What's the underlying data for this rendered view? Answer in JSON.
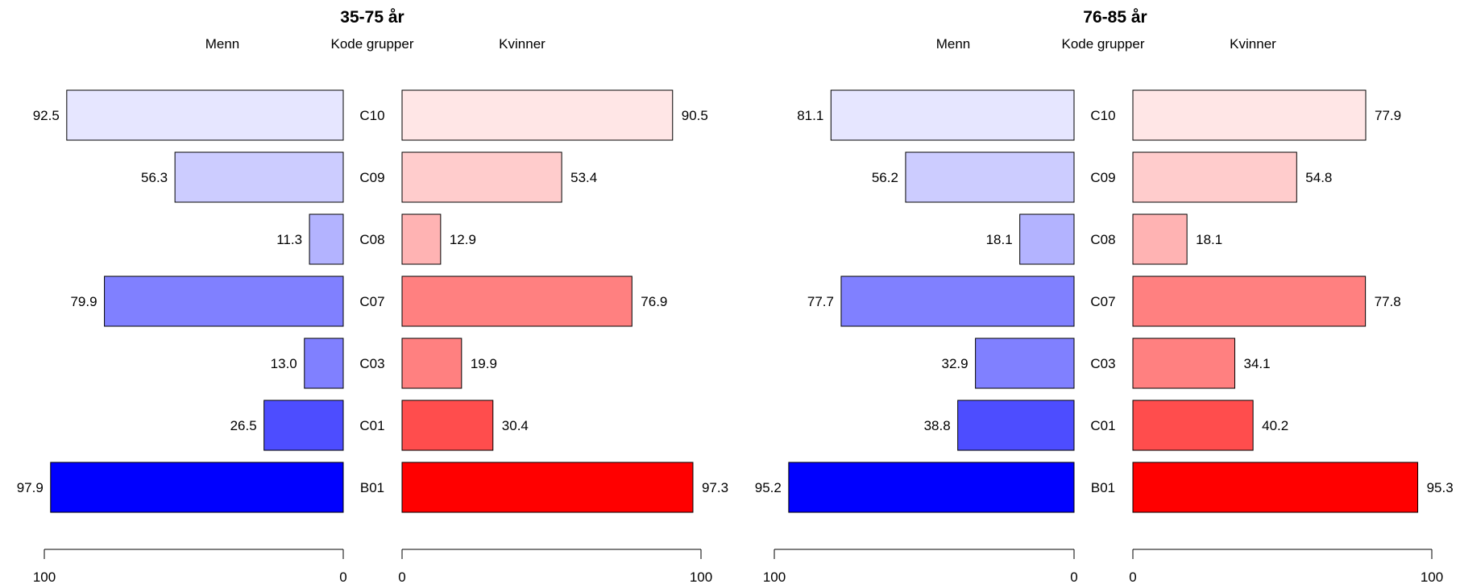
{
  "chart_data": [
    {
      "type": "bar",
      "title": "35-75 år",
      "headers": {
        "left": "Menn",
        "center": "Kode grupper",
        "right": "Kvinner"
      },
      "categories": [
        "C10",
        "C09",
        "C08",
        "C07",
        "C03",
        "C01",
        "B01"
      ],
      "series": [
        {
          "name": "Menn",
          "values": [
            92.5,
            56.3,
            11.3,
            79.9,
            13.0,
            26.5,
            97.9
          ],
          "labels": [
            "92.5",
            "56.3",
            "11.3",
            "79.9",
            "13.0",
            "26.5",
            "97.9"
          ]
        },
        {
          "name": "Kvinner",
          "values": [
            90.5,
            53.4,
            12.9,
            76.9,
            19.9,
            30.4,
            97.3
          ],
          "labels": [
            "90.5",
            "53.4",
            "12.9",
            "76.9",
            "19.9",
            "30.4",
            "97.3"
          ]
        }
      ],
      "xlim": [
        0,
        100
      ],
      "left_axis_ticks": [
        "100",
        "0"
      ],
      "right_axis_ticks": [
        "0",
        "100"
      ]
    },
    {
      "type": "bar",
      "title": "76-85 år",
      "headers": {
        "left": "Menn",
        "center": "Kode grupper",
        "right": "Kvinner"
      },
      "categories": [
        "C10",
        "C09",
        "C08",
        "C07",
        "C03",
        "C01",
        "B01"
      ],
      "series": [
        {
          "name": "Menn",
          "values": [
            81.1,
            56.2,
            18.1,
            77.7,
            32.9,
            38.8,
            95.2
          ],
          "labels": [
            "81.1",
            "56.2",
            "18.1",
            "77.7",
            "32.9",
            "38.8",
            "95.2"
          ]
        },
        {
          "name": "Kvinner",
          "values": [
            77.9,
            54.8,
            18.1,
            77.8,
            34.1,
            40.2,
            95.3
          ],
          "labels": [
            "77.9",
            "54.8",
            "18.1",
            "77.8",
            "34.1",
            "40.2",
            "95.3"
          ]
        }
      ],
      "xlim": [
        0,
        100
      ],
      "left_axis_ticks": [
        "100",
        "0"
      ],
      "right_axis_ticks": [
        "0",
        "100"
      ]
    }
  ],
  "colors": {
    "men": [
      "#e6e6ff",
      "#ccccff",
      "#b3b3ff",
      "#8080ff",
      "#8080ff",
      "#4d4dff",
      "#0000ff"
    ],
    "women": [
      "#ffe6e6",
      "#ffcccc",
      "#ffb3b3",
      "#ff8080",
      "#ff8080",
      "#ff4d4d",
      "#ff0000"
    ],
    "outline": "#000000"
  }
}
